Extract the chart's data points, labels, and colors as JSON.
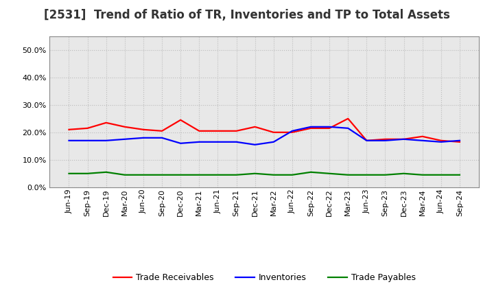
{
  "title": "[2531]  Trend of Ratio of TR, Inventories and TP to Total Assets",
  "x_labels": [
    "Jun-19",
    "Sep-19",
    "Dec-19",
    "Mar-20",
    "Jun-20",
    "Sep-20",
    "Dec-20",
    "Mar-21",
    "Jun-21",
    "Sep-21",
    "Dec-21",
    "Mar-22",
    "Jun-22",
    "Sep-22",
    "Dec-22",
    "Mar-23",
    "Jun-23",
    "Sep-23",
    "Dec-23",
    "Mar-24",
    "Jun-24",
    "Sep-24"
  ],
  "trade_receivables": [
    21.0,
    21.5,
    23.5,
    22.0,
    21.0,
    20.5,
    24.5,
    20.5,
    20.5,
    20.5,
    22.0,
    20.0,
    20.0,
    21.5,
    21.5,
    25.0,
    17.0,
    17.5,
    17.5,
    18.5,
    17.0,
    16.5
  ],
  "inventories": [
    17.0,
    17.0,
    17.0,
    17.5,
    18.0,
    18.0,
    16.0,
    16.5,
    16.5,
    16.5,
    15.5,
    16.5,
    20.5,
    22.0,
    22.0,
    21.5,
    17.0,
    17.0,
    17.5,
    17.0,
    16.5,
    17.0
  ],
  "trade_payables": [
    5.0,
    5.0,
    5.5,
    4.5,
    4.5,
    4.5,
    4.5,
    4.5,
    4.5,
    4.5,
    5.0,
    4.5,
    4.5,
    5.5,
    5.0,
    4.5,
    4.5,
    4.5,
    5.0,
    4.5,
    4.5,
    4.5
  ],
  "ylim": [
    0,
    55
  ],
  "yticks": [
    0,
    10,
    20,
    30,
    40,
    50
  ],
  "ytick_labels": [
    "0.0%",
    "10.0%",
    "20.0%",
    "30.0%",
    "40.0%",
    "50.0%"
  ],
  "color_tr": "#ff0000",
  "color_inv": "#0000ff",
  "color_tp": "#008000",
  "legend_labels": [
    "Trade Receivables",
    "Inventories",
    "Trade Payables"
  ],
  "bg_color": "#ffffff",
  "plot_bg_color": "#e8e8e8",
  "grid_color": "#bbbbbb",
  "title_fontsize": 12,
  "tick_fontsize": 8,
  "legend_fontsize": 9,
  "line_width": 1.6
}
